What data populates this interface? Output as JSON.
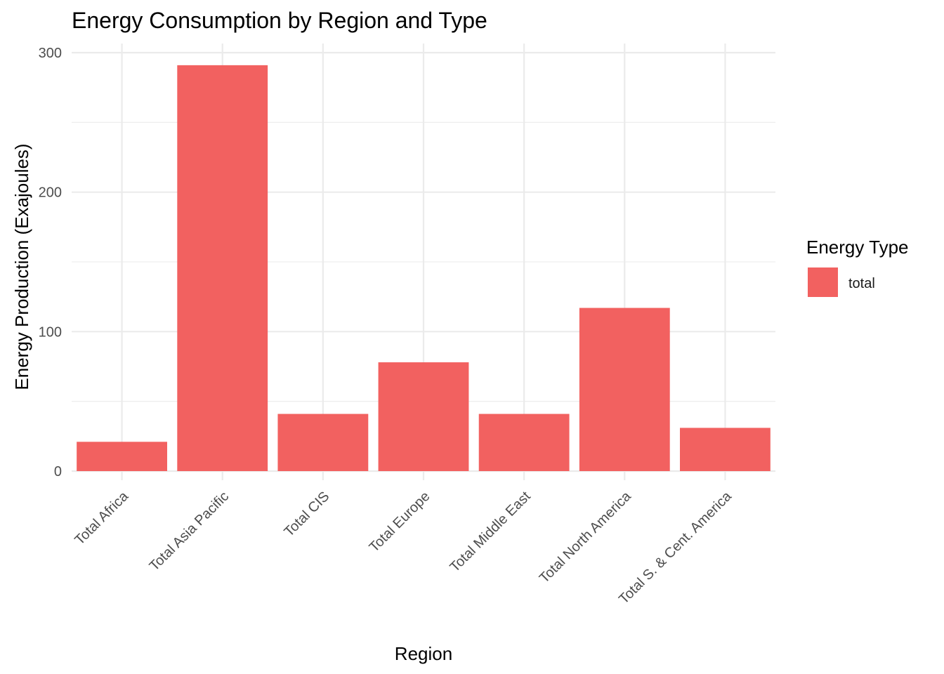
{
  "chart_data": {
    "type": "bar",
    "title": "Energy Consumption by Region and Type",
    "xlabel": "Region",
    "ylabel": "Energy Production (Exajoules)",
    "categories": [
      "Total Africa",
      "Total Asia Pacific",
      "Total CIS",
      "Total Europe",
      "Total Middle East",
      "Total North America",
      "Total S. & Cent. America"
    ],
    "series": [
      {
        "name": "total",
        "color": "#F26160",
        "values": [
          21,
          291,
          41,
          78,
          41,
          117,
          31
        ]
      }
    ],
    "ylim": [
      0,
      300
    ],
    "yticks": [
      "0",
      "100",
      "200",
      "300"
    ],
    "grid": true,
    "legend": {
      "title": "Energy Type",
      "position": "right"
    }
  }
}
